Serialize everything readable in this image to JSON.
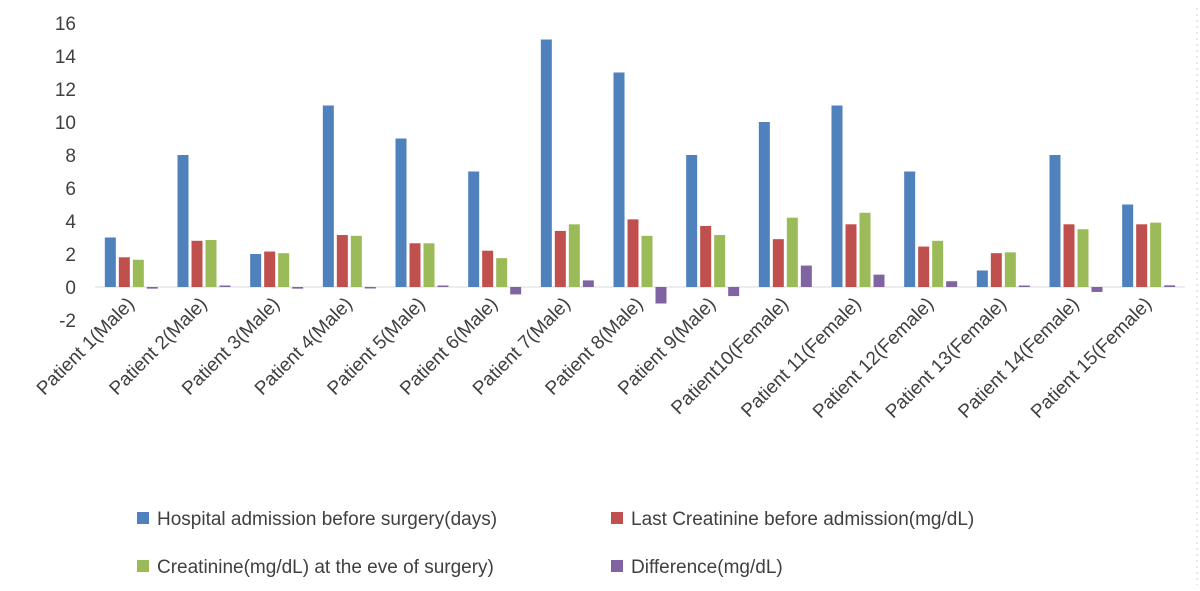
{
  "chart_data": {
    "type": "bar",
    "categories": [
      "Patient 1(Male)",
      "Patient 2(Male)",
      "Patient 3(Male)",
      "Patient 4(Male)",
      "Patient 5(Male)",
      "Patient 6(Male)",
      "Patient 7(Male)",
      "Patient 8(Male)",
      "Patient 9(Male)",
      "Patient10(Female)",
      "Patient 11(Female)",
      "Patient 12(Female)",
      "Patient 13(Female)",
      "Patient 14(Female)",
      "Patient 15(Female)"
    ],
    "series": [
      {
        "name": "Hospital admission before surgery(days)",
        "color": "#4f81bd",
        "values": [
          3,
          8,
          2,
          11,
          9,
          7,
          15,
          13,
          8,
          10,
          11,
          7,
          1,
          8,
          5
        ]
      },
      {
        "name": "Last Creatinine before admission(mg/dL)",
        "color": "#c0504d",
        "values": [
          1.8,
          2.8,
          2.15,
          3.15,
          2.65,
          2.2,
          3.4,
          4.1,
          3.7,
          2.9,
          3.8,
          2.45,
          2.05,
          3.8,
          3.8
        ]
      },
      {
        "name": "Creatinine(mg/dL) at the eve of surgery)",
        "color": "#9bbb59",
        "values": [
          1.65,
          2.85,
          2.05,
          3.1,
          2.65,
          1.75,
          3.8,
          3.1,
          3.15,
          4.2,
          4.5,
          2.8,
          2.1,
          3.5,
          3.9
        ]
      },
      {
        "name": "Difference(mg/dL)",
        "color": "#8064a2",
        "values": [
          -0.1,
          0.05,
          -0.1,
          -0.05,
          0,
          -0.45,
          0.4,
          -1.0,
          -0.55,
          1.3,
          0.75,
          0.35,
          0.05,
          -0.3,
          0.1
        ]
      }
    ],
    "y_ticks": [
      "16",
      "14",
      "12",
      "10",
      "8",
      "6",
      "4",
      "2",
      "0",
      "-2"
    ],
    "ylim": [
      -2,
      16
    ],
    "grid": false,
    "legend_position": "bottom",
    "title": "",
    "xlabel": "",
    "ylabel": ""
  }
}
